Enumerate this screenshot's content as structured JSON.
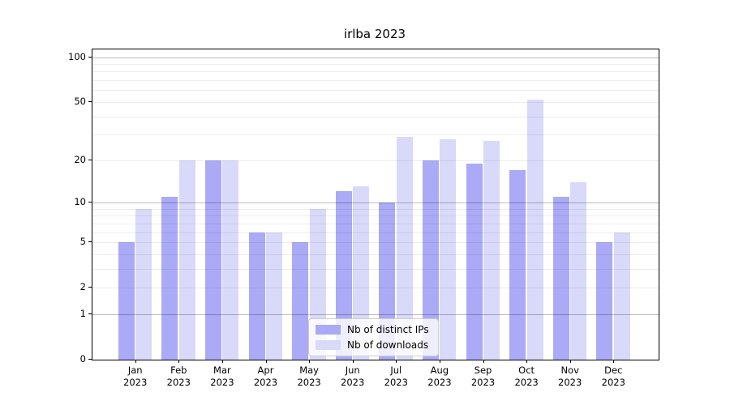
{
  "chart_data": {
    "type": "bar",
    "title": "irlba 2023",
    "categories": [
      "Jan",
      "Feb",
      "Mar",
      "Apr",
      "May",
      "Jun",
      "Jul",
      "Aug",
      "Sep",
      "Oct",
      "Nov",
      "Dec"
    ],
    "category_year": "2023",
    "series": [
      {
        "name": "Nb of distinct IPs",
        "color": "#aaaaf6",
        "values": [
          5,
          11,
          20,
          6,
          5,
          12,
          10,
          20,
          19,
          17,
          11,
          5
        ]
      },
      {
        "name": "Nb of downloads",
        "color": "#d9d9fa",
        "values": [
          9,
          20,
          20,
          6,
          9,
          13,
          29,
          28,
          27,
          52,
          14,
          6
        ]
      }
    ],
    "xlabel": "",
    "ylabel": "",
    "yticks": [
      0,
      1,
      2,
      5,
      10,
      20,
      50,
      100
    ],
    "minor_gridlines": [
      2,
      3,
      4,
      5,
      6,
      7,
      8,
      9,
      20,
      30,
      40,
      50,
      60,
      70,
      80,
      90
    ],
    "major_gridlines": [
      1,
      10,
      100
    ],
    "scale": "symlog: y = log10(1+value)",
    "ylim": [
      0,
      113
    ],
    "grid": true,
    "legend_position": "bottom-center"
  }
}
